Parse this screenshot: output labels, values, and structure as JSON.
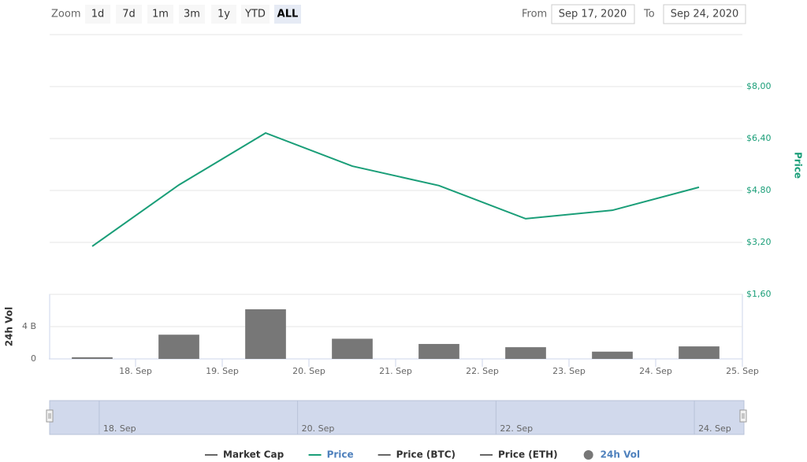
{
  "ui": {
    "zoom_label": "Zoom",
    "buttons": [
      "1d",
      "7d",
      "1m",
      "3m",
      "1y",
      "YTD",
      "ALL"
    ],
    "selected": 6,
    "from_label": "From",
    "from": "Sep 17, 2020",
    "to_label": "To",
    "to": "Sep 24, 2020"
  },
  "chart_data": {
    "type": "stock",
    "x": [
      17.5,
      18.5,
      19.5,
      20.5,
      21.5,
      22.5,
      23.5,
      24.5
    ],
    "xlim": [
      17,
      25
    ],
    "xticks": [
      {
        "value": 18,
        "label": "18. Sep"
      },
      {
        "value": 19,
        "label": "19. Sep"
      },
      {
        "value": 20,
        "label": "20. Sep"
      },
      {
        "value": 21,
        "label": "21. Sep"
      },
      {
        "value": 22,
        "label": "22. Sep"
      },
      {
        "value": 23,
        "label": "23. Sep"
      },
      {
        "value": 24,
        "label": "24. Sep"
      },
      {
        "value": 25,
        "label": "25. Sep"
      }
    ],
    "y_label": "Price",
    "ylim": [
      1.6,
      9.6
    ],
    "yticks": [
      {
        "value": 1.6,
        "label": "$1,60"
      },
      {
        "value": 3.2,
        "label": "$3,20"
      },
      {
        "value": 4.8,
        "label": "$4,80"
      },
      {
        "value": 6.4,
        "label": "$6,40"
      },
      {
        "value": 8.0,
        "label": "$8,00"
      }
    ],
    "y2_label": "24h Vol",
    "y2lim": [
      0,
      8
    ],
    "y2ticks": [
      0,
      {
        "value": 4,
        "label": "4 B"
      }
    ],
    "grid": true,
    "series": [
      {
        "name": "Market Cap",
        "color": "#666666",
        "visible": false
      },
      {
        "name": "Price",
        "color": "#1a9e78",
        "visible": true,
        "kind": "line",
        "values": [
          3.08,
          4.97,
          6.57,
          5.55,
          4.95,
          3.93,
          4.19,
          4.9
        ]
      },
      {
        "name": "Price (BTC)",
        "color": "#666666",
        "visible": false
      },
      {
        "name": "Price (ETH)",
        "color": "#666666",
        "visible": false
      },
      {
        "name": "24h Vol",
        "color": "#777777",
        "visible": true,
        "kind": "column",
        "axis": "y2",
        "values": [
          0.2,
          3.0,
          6.15,
          2.5,
          1.85,
          1.45,
          0.9,
          1.55
        ]
      }
    ],
    "navigator": {
      "xlim": [
        17.5,
        24.5
      ],
      "xticks": [
        {
          "value": 18,
          "label": "18. Sep"
        },
        {
          "value": 20,
          "label": "20. Sep"
        },
        {
          "value": 22,
          "label": "22. Sep"
        },
        {
          "value": 24,
          "label": "24. Sep"
        }
      ]
    }
  }
}
